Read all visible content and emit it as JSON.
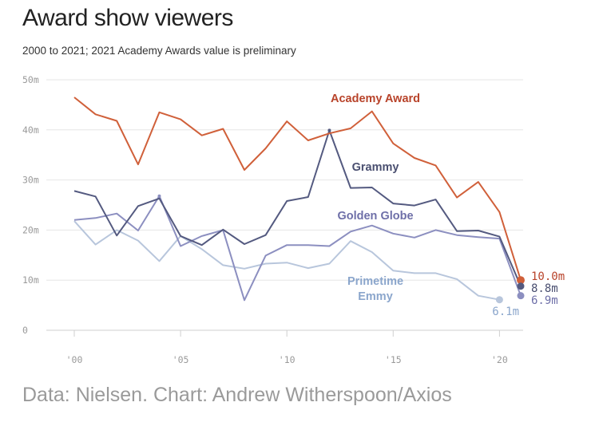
{
  "chart_data": {
    "type": "line",
    "title": "Award show viewers",
    "subtitle": "2000 to 2021; 2021 Academy Awards value is preliminary",
    "source": "Data: Nielsen. Chart: Andrew Witherspoon/Axios",
    "xlabel": "",
    "ylabel": "",
    "ylim": [
      0,
      50
    ],
    "xlim": [
      2000,
      2021
    ],
    "yticks": [
      {
        "value": 0,
        "label": "0"
      },
      {
        "value": 10,
        "label": "10m"
      },
      {
        "value": 20,
        "label": "20m"
      },
      {
        "value": 30,
        "label": "30m"
      },
      {
        "value": 40,
        "label": "40m"
      },
      {
        "value": 50,
        "label": "50m"
      }
    ],
    "xticks": [
      {
        "value": 2000,
        "label": "'00"
      },
      {
        "value": 2005,
        "label": "'05"
      },
      {
        "value": 2010,
        "label": "'10"
      },
      {
        "value": 2015,
        "label": "'15"
      },
      {
        "value": 2020,
        "label": "'20"
      }
    ],
    "grid": true,
    "legend": "inline labels",
    "series": [
      {
        "name": "Academy Award",
        "color": "#d0603a",
        "label_color": "#b8432a",
        "end_label": "10.0m",
        "x": [
          2000,
          2001,
          2002,
          2003,
          2004,
          2005,
          2006,
          2007,
          2008,
          2009,
          2010,
          2011,
          2012,
          2013,
          2014,
          2015,
          2016,
          2017,
          2018,
          2019,
          2020,
          2021
        ],
        "values": [
          46.5,
          43.1,
          41.8,
          33.1,
          43.5,
          42.1,
          38.9,
          40.2,
          32.0,
          36.3,
          41.7,
          37.9,
          39.3,
          40.3,
          43.7,
          37.3,
          34.4,
          32.9,
          26.5,
          29.6,
          23.6,
          10.0
        ]
      },
      {
        "name": "Grammy",
        "color": "#545a80",
        "label_color": "#4a4f70",
        "end_label": "8.8m",
        "x": [
          2000,
          2001,
          2002,
          2003,
          2004,
          2005,
          2006,
          2007,
          2008,
          2009,
          2010,
          2011,
          2012,
          2013,
          2014,
          2015,
          2016,
          2017,
          2018,
          2019,
          2020,
          2021
        ],
        "values": [
          27.8,
          26.7,
          18.9,
          24.8,
          26.3,
          18.8,
          17.0,
          20.1,
          17.2,
          19.0,
          25.8,
          26.6,
          39.9,
          28.4,
          28.5,
          25.3,
          24.9,
          26.1,
          19.8,
          19.9,
          18.7,
          8.8
        ]
      },
      {
        "name": "Golden Globe",
        "color": "#8c8fc0",
        "label_color": "#6e6fa8",
        "end_label": "6.9m",
        "x": [
          2000,
          2001,
          2002,
          2003,
          2004,
          2005,
          2006,
          2007,
          2008,
          2009,
          2010,
          2011,
          2012,
          2013,
          2014,
          2015,
          2016,
          2017,
          2018,
          2019,
          2020,
          2021
        ],
        "values": [
          22.0,
          22.4,
          23.3,
          19.9,
          26.8,
          16.8,
          18.8,
          20.0,
          6.0,
          14.9,
          17.0,
          17.0,
          16.8,
          19.7,
          20.9,
          19.3,
          18.5,
          20.0,
          19.0,
          18.6,
          18.3,
          6.9
        ]
      },
      {
        "name": "Primetime Emmy",
        "name_lines": [
          "Primetime",
          "Emmy"
        ],
        "color": "#b8c6dc",
        "label_color": "#8ba6cc",
        "end_label": "6.1m",
        "x": [
          2000,
          2001,
          2002,
          2003,
          2004,
          2005,
          2006,
          2007,
          2008,
          2009,
          2010,
          2011,
          2012,
          2013,
          2014,
          2015,
          2016,
          2017,
          2018,
          2019,
          2020
        ],
        "values": [
          21.8,
          17.1,
          20.0,
          17.9,
          13.8,
          18.8,
          16.2,
          13.0,
          12.3,
          13.3,
          13.5,
          12.4,
          13.3,
          17.8,
          15.6,
          11.9,
          11.4,
          11.4,
          10.2,
          6.9,
          6.1
        ]
      }
    ]
  }
}
